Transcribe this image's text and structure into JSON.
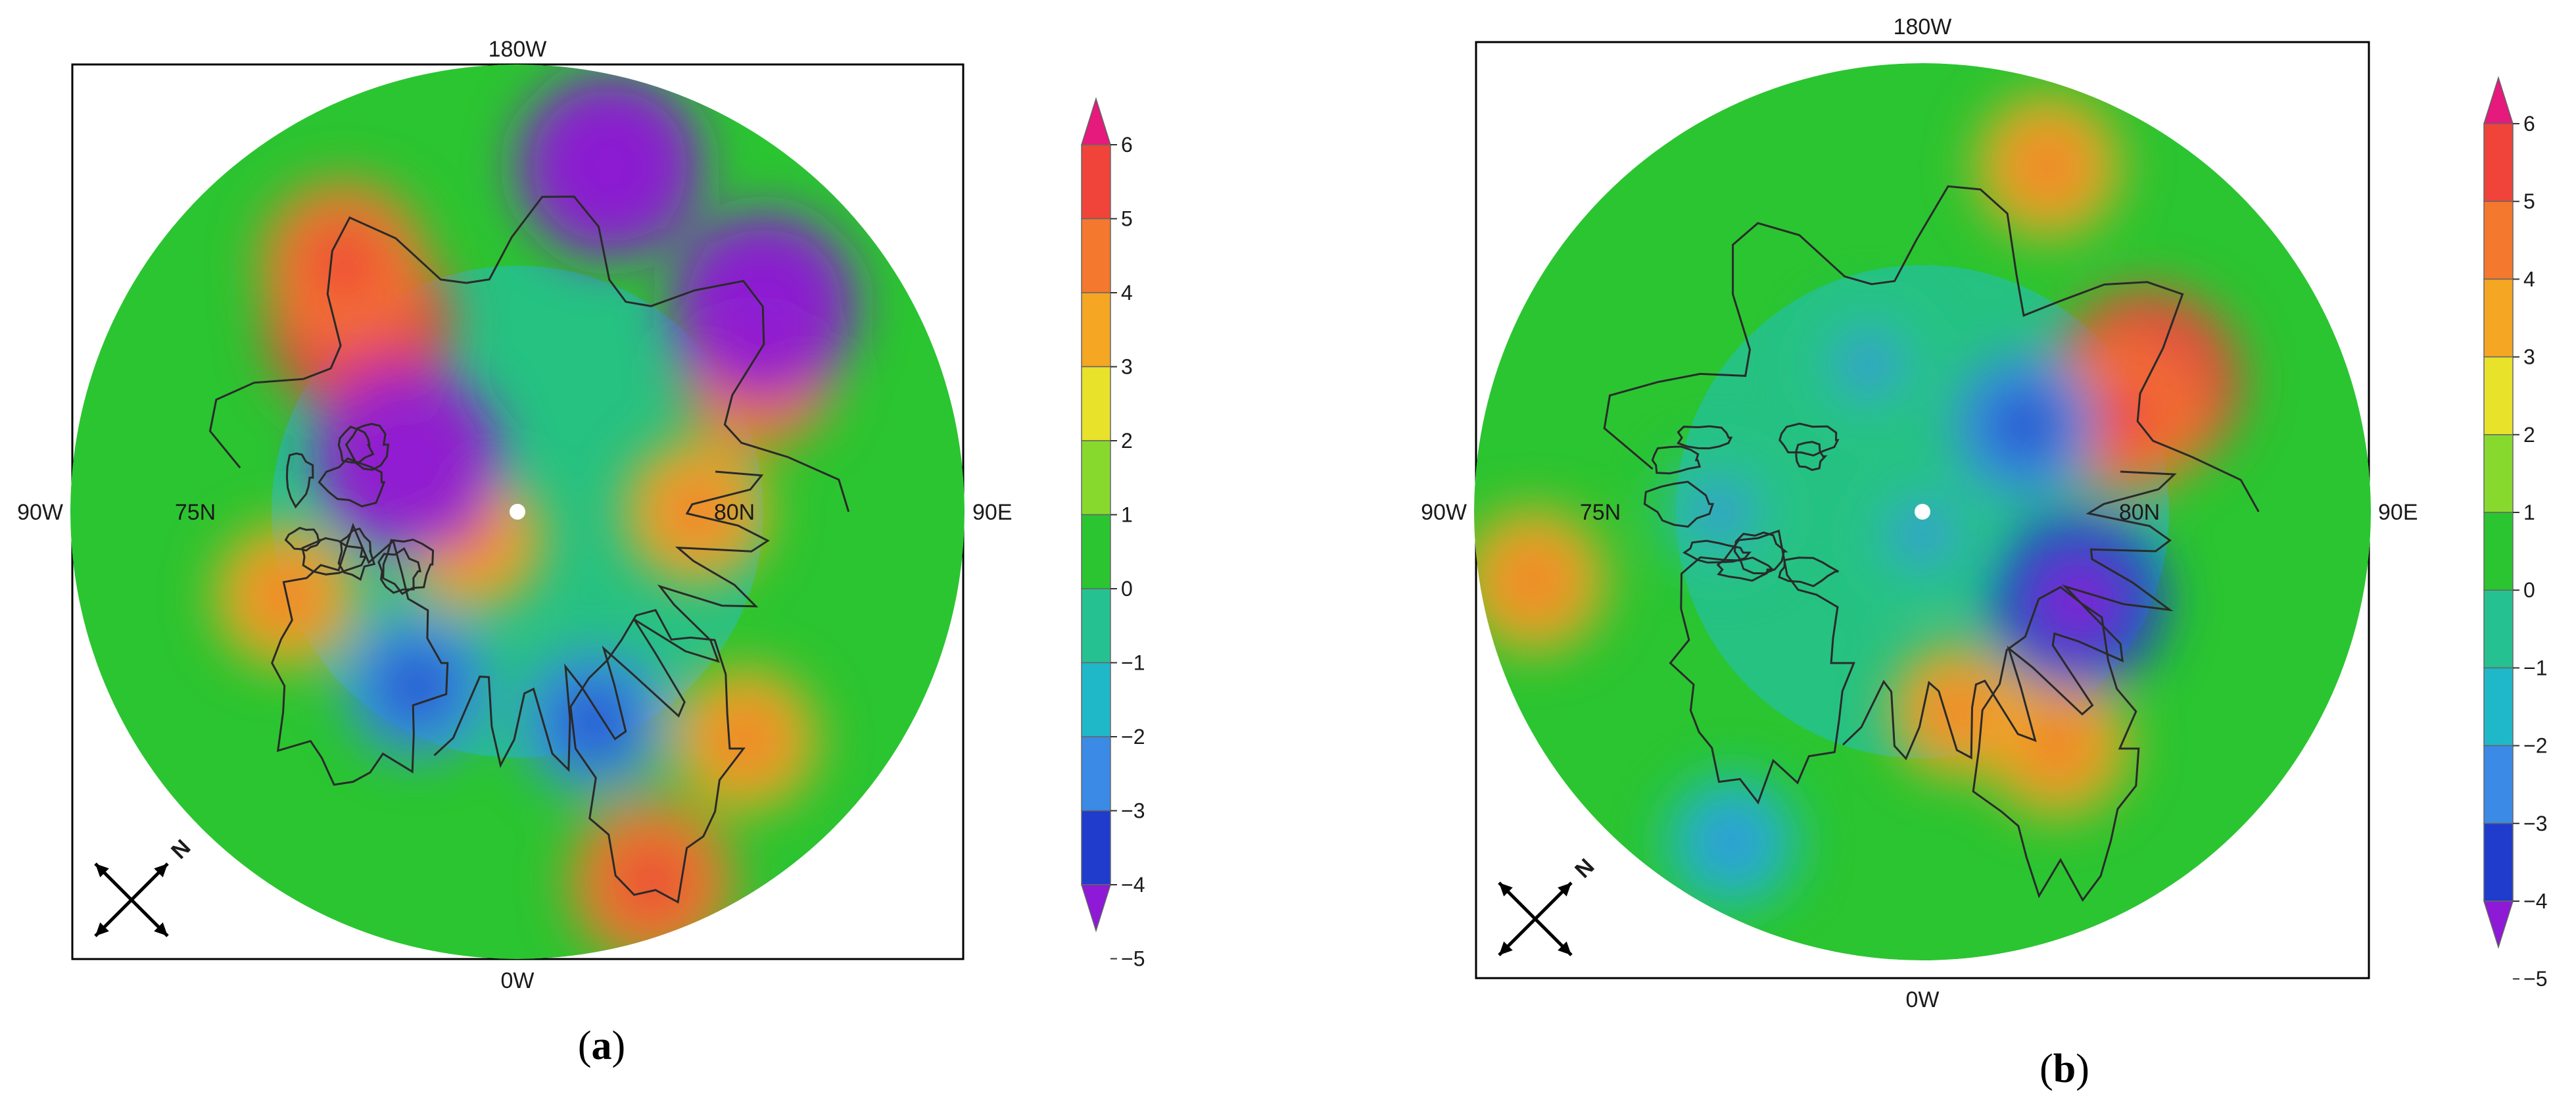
{
  "panels": [
    {
      "id": "a",
      "caption_open": "(",
      "caption_letter": "a",
      "caption_close": ")",
      "labels": {
        "top": "180W",
        "bottom": "0W",
        "left": "90W",
        "right": "90E",
        "lat_inner": "75N",
        "lat_outer": "80N"
      },
      "colorbar": {
        "ticks": [
          "6",
          "5",
          "4",
          "3",
          "2",
          "1",
          "0",
          "−1",
          "−2",
          "−3",
          "−4",
          "−5"
        ]
      },
      "compass_label": "N",
      "anomaly_blobs": [
        {
          "value": 4.5,
          "lon": -140,
          "r": 0.55
        },
        {
          "value": 3.5,
          "lon": -145,
          "r": 0.68
        },
        {
          "value": 2.5,
          "lon": -120,
          "r": 0.3
        },
        {
          "value": 2.5,
          "lon": -60,
          "r": 0.12
        },
        {
          "value": 3.0,
          "lon": 120,
          "r": 0.62
        },
        {
          "value": 2.5,
          "lon": 90,
          "r": 0.4
        },
        {
          "value": -4.5,
          "lon": 165,
          "r": 0.8
        },
        {
          "value": -4.5,
          "lon": 130,
          "r": 0.72
        },
        {
          "value": -4.5,
          "lon": -115,
          "r": 0.27
        },
        {
          "value": -2.5,
          "lon": 20,
          "r": 0.5
        },
        {
          "value": -2.5,
          "lon": -30,
          "r": 0.45
        },
        {
          "value": 3.5,
          "lon": 20,
          "r": 0.88
        },
        {
          "value": 2.5,
          "lon": 45,
          "r": 0.72
        },
        {
          "value": 2.5,
          "lon": -70,
          "r": 0.55
        }
      ]
    },
    {
      "id": "b",
      "caption_open": "(",
      "caption_letter": "b",
      "caption_close": ")",
      "labels": {
        "top": "180W",
        "bottom": "0W",
        "left": "90W",
        "right": "90E",
        "lat_inner": "75N",
        "lat_outer": "80N"
      },
      "colorbar": {
        "ticks": [
          "6",
          "5",
          "4",
          "3",
          "2",
          "1",
          "0",
          "−1",
          "−2",
          "−3",
          "−4",
          "−5"
        ]
      },
      "compass_label": "N",
      "anomaly_blobs": [
        {
          "value": 4.5,
          "lon": 120,
          "r": 0.58
        },
        {
          "value": 3.0,
          "lon": 115,
          "r": 0.5
        },
        {
          "value": 2.5,
          "lon": 160,
          "r": 0.82
        },
        {
          "value": 2.5,
          "lon": 30,
          "r": 0.6
        },
        {
          "value": 2.0,
          "lon": 10,
          "r": 0.45
        },
        {
          "value": 2.5,
          "lon": -80,
          "r": 0.88
        },
        {
          "value": -2.5,
          "lon": 130,
          "r": 0.3
        },
        {
          "value": -4.0,
          "lon": 60,
          "r": 0.4
        },
        {
          "value": -1.5,
          "lon": -90,
          "r": 0.45
        },
        {
          "value": -1.5,
          "lon": 0,
          "r": 0.05
        },
        {
          "value": -1.5,
          "lon": -160,
          "r": 0.35
        },
        {
          "value": -2.0,
          "lon": -30,
          "r": 0.85
        }
      ]
    }
  ],
  "colors": {
    "level_6": "#e6197d",
    "level_5": "#f0433a",
    "level_4": "#f4782e",
    "level_3": "#f5a623",
    "level_2": "#e8e22a",
    "level_1": "#88d92e",
    "level_0": "#2bc531",
    "level_m1": "#26c190",
    "level_m2": "#1fb8c9",
    "level_m3": "#3a8ae6",
    "level_m4": "#1f3ccc",
    "level_m5": "#8e19d6",
    "coast": "#2a2a2a"
  }
}
